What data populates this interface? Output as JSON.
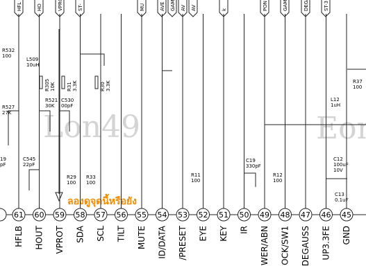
{
  "pins": [
    {
      "number": 61,
      "label": "HFLB"
    },
    {
      "number": 60,
      "label": "HOUT"
    },
    {
      "number": 59,
      "label": "VPROT"
    },
    {
      "number": 58,
      "label": "SDA"
    },
    {
      "number": 57,
      "label": "SCL"
    },
    {
      "number": 56,
      "label": "TILT"
    },
    {
      "number": 55,
      "label": "MUTE"
    },
    {
      "number": 54,
      "label": "ID/DATA"
    },
    {
      "number": 53,
      "label": "/PRESET"
    },
    {
      "number": 52,
      "label": "EYE"
    },
    {
      "number": 51,
      "label": "KEY"
    },
    {
      "number": 50,
      "label": "IR"
    },
    {
      "number": 49,
      "label": "WER/ABN"
    },
    {
      "number": 48,
      "label": "OCK/SW1"
    },
    {
      "number": 47,
      "label": "DEGAUSS"
    },
    {
      "number": 46,
      "label": "UP3.3FE"
    },
    {
      "number": 45,
      "label": "GND"
    }
  ],
  "top_labels": [
    "HFL",
    "HO",
    "VPROT",
    "ST-",
    "MU",
    "AVE",
    "GAME_",
    "AV",
    "AV",
    "k",
    "PON",
    "GAME_C",
    "DEGA",
    "ST-3"
  ],
  "components": [
    {
      "lines": [
        "R532",
        "100"
      ]
    },
    {
      "lines": [
        "L509",
        "10uH"
      ]
    },
    {
      "lines": [
        "R305",
        "10K"
      ]
    },
    {
      "lines": [
        "R31",
        "3.3K"
      ]
    },
    {
      "lines": [
        "R30",
        "3.3K"
      ]
    },
    {
      "lines": [
        "R527",
        "27K"
      ]
    },
    {
      "lines": [
        "R521",
        "30K"
      ]
    },
    {
      "lines": [
        "C530",
        "00pF"
      ]
    },
    {
      "lines": [
        "C545",
        "22pF"
      ]
    },
    {
      "lines": [
        "19",
        "pF"
      ]
    },
    {
      "lines": [
        "R29",
        "100"
      ]
    },
    {
      "lines": [
        "R33",
        "100"
      ]
    },
    {
      "lines": [
        "R11",
        "100"
      ]
    },
    {
      "lines": [
        "C19",
        "330pF"
      ]
    },
    {
      "lines": [
        "R12",
        "100"
      ]
    },
    {
      "lines": [
        "C12",
        "100uF",
        "10V"
      ]
    },
    {
      "lines": [
        "C13",
        "0.1uF"
      ]
    },
    {
      "lines": [
        "L12",
        "1uH"
      ]
    },
    {
      "lines": [
        "R37",
        "100"
      ]
    }
  ],
  "watermarks": [
    "Lon49",
    "Eon"
  ],
  "annotation": "ลองดูจุดนี้หรือยัง"
}
